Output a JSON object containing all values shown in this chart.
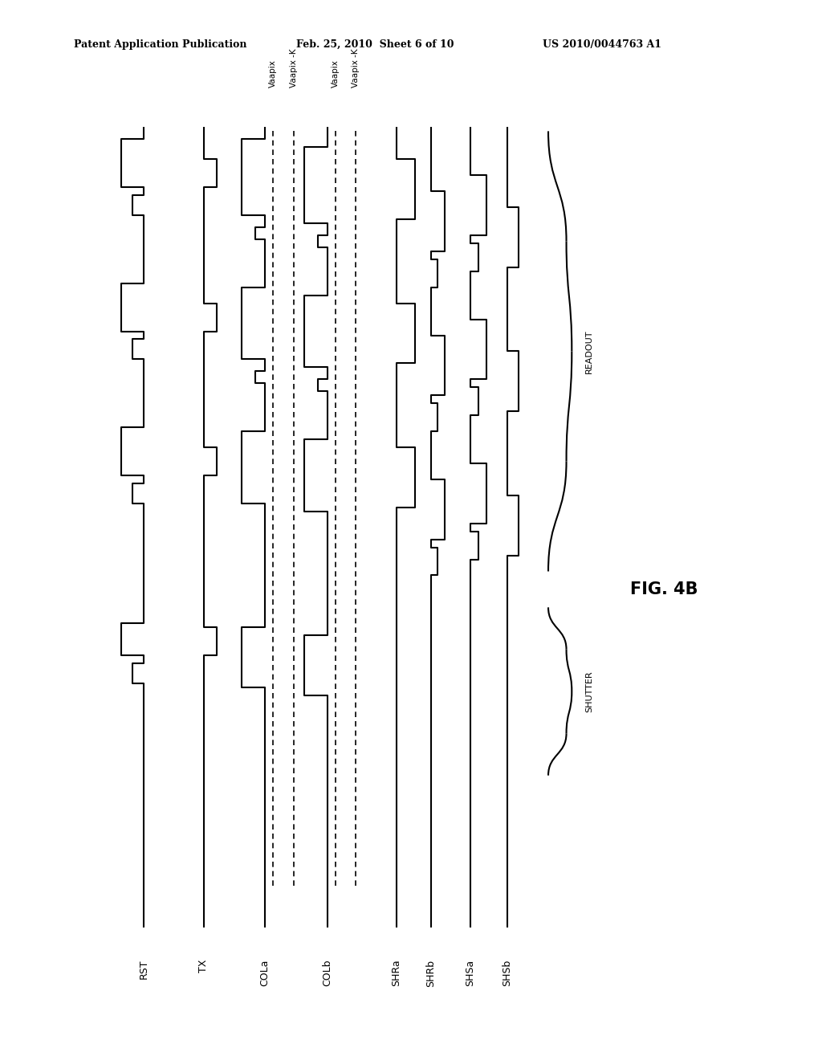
{
  "title_left": "Patent Application Publication",
  "title_mid": "Feb. 25, 2010  Sheet 6 of 10",
  "title_right": "US 2010/0044763 A1",
  "fig_label": "FIG. 4B",
  "signals": [
    "RST",
    "TX",
    "COLa",
    "COLb",
    "SHRa",
    "SHRb",
    "SHSa",
    "SHSb"
  ],
  "background_color": "#ffffff",
  "line_color": "#000000",
  "lw": 1.5
}
